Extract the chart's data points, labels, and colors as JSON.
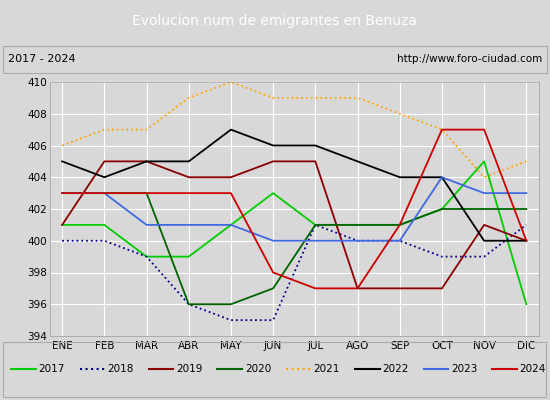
{
  "title": "Evolucion num de emigrantes en Benuza",
  "subtitle_left": "2017 - 2024",
  "subtitle_right": "http://www.foro-ciudad.com",
  "months": [
    "ENE",
    "FEB",
    "MAR",
    "ABR",
    "MAY",
    "JUN",
    "JUL",
    "AGO",
    "SEP",
    "OCT",
    "NOV",
    "DIC"
  ],
  "ylim": [
    394,
    410
  ],
  "yticks": [
    394,
    396,
    398,
    400,
    402,
    404,
    406,
    408,
    410
  ],
  "series": [
    {
      "year": "2017",
      "color": "#00cc00",
      "linestyle": "-",
      "linewidth": 1.3,
      "values": [
        401,
        401,
        399,
        399,
        401,
        403,
        401,
        401,
        401,
        402,
        405,
        396
      ]
    },
    {
      "year": "2018",
      "color": "#00008b",
      "linestyle": ":",
      "linewidth": 1.3,
      "values": [
        400,
        400,
        399,
        396,
        395,
        395,
        401,
        400,
        400,
        399,
        399,
        401
      ]
    },
    {
      "year": "2019",
      "color": "#8b0000",
      "linestyle": "-",
      "linewidth": 1.3,
      "values": [
        401,
        405,
        405,
        404,
        404,
        405,
        405,
        397,
        397,
        397,
        401,
        400
      ]
    },
    {
      "year": "2020",
      "color": "#006400",
      "linestyle": "-",
      "linewidth": 1.3,
      "values": [
        403,
        403,
        403,
        396,
        396,
        397,
        401,
        401,
        401,
        402,
        402,
        402
      ]
    },
    {
      "year": "2021",
      "color": "#ffa500",
      "linestyle": ":",
      "linewidth": 1.3,
      "values": [
        406,
        407,
        407,
        409,
        410,
        409,
        409,
        409,
        408,
        407,
        404,
        405
      ]
    },
    {
      "year": "2022",
      "color": "#000000",
      "linestyle": "-",
      "linewidth": 1.3,
      "values": [
        405,
        404,
        405,
        405,
        407,
        406,
        406,
        405,
        404,
        404,
        400,
        400
      ]
    },
    {
      "year": "2023",
      "color": "#4169e1",
      "linestyle": "-",
      "linewidth": 1.3,
      "values": [
        403,
        403,
        401,
        401,
        401,
        400,
        400,
        400,
        400,
        404,
        403,
        403
      ]
    },
    {
      "year": "2024",
      "color": "#cc0000",
      "linestyle": "-",
      "linewidth": 1.3,
      "values": [
        403,
        403,
        403,
        403,
        403,
        398,
        397,
        397,
        401,
        407,
        407,
        400
      ]
    }
  ],
  "background_color": "#d8d8d8",
  "plot_bg_color": "#d8d8d8",
  "title_bg_color": "#4472c4",
  "title_color": "#ffffff",
  "grid_color": "#ffffff",
  "legend_bg": "#f0f0f0",
  "fig_width": 5.5,
  "fig_height": 4.0,
  "dpi": 100
}
